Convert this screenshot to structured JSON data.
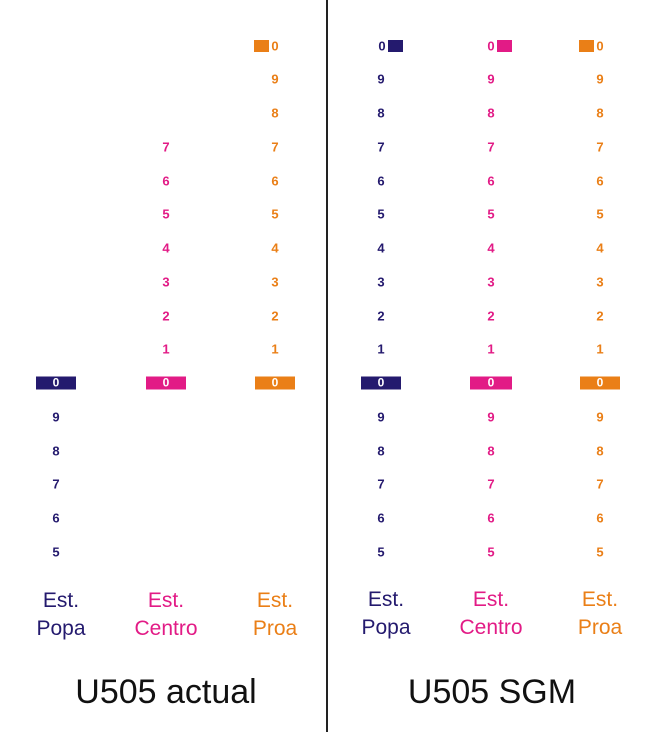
{
  "colors": {
    "popa": "#241a6e",
    "centro": "#e21b86",
    "proa": "#ea7f17",
    "divider": "#222222"
  },
  "panels": [
    {
      "title": "U505 actual",
      "columns": [
        {
          "key": "popa",
          "label_line1": "Est.",
          "label_line2": "Popa",
          "ticks_above": [],
          "zero_label": "0",
          "ticks_below": [
            "9",
            "8",
            "7",
            "6",
            "5"
          ],
          "top_zero_label": null
        },
        {
          "key": "centro",
          "label_line1": "Est.",
          "label_line2": "Centro",
          "ticks_above": [
            "7",
            "6",
            "5",
            "4",
            "3",
            "2",
            "1"
          ],
          "zero_label": "0",
          "ticks_below": [],
          "top_zero_label": null
        },
        {
          "key": "proa",
          "label_line1": "Est.",
          "label_line2": "Proa",
          "ticks_above": [
            "9",
            "8",
            "7",
            "6",
            "5",
            "4",
            "3",
            "2",
            "1"
          ],
          "zero_label": "0",
          "ticks_below": [],
          "top_zero_label": "0"
        }
      ]
    },
    {
      "title": "U505 SGM",
      "columns": [
        {
          "key": "popa",
          "label_line1": "Est.",
          "label_line2": "Popa",
          "ticks_above": [
            "9",
            "8",
            "7",
            "6",
            "5",
            "4",
            "3",
            "2",
            "1"
          ],
          "zero_label": "0",
          "ticks_below": [
            "9",
            "8",
            "7",
            "6",
            "5"
          ],
          "top_zero_label": "0"
        },
        {
          "key": "centro",
          "label_line1": "Est.",
          "label_line2": "Centro",
          "ticks_above": [
            "9",
            "8",
            "7",
            "6",
            "5",
            "4",
            "3",
            "2",
            "1"
          ],
          "zero_label": "0",
          "ticks_below": [
            "9",
            "8",
            "7",
            "6",
            "5"
          ],
          "top_zero_label": "0"
        },
        {
          "key": "proa",
          "label_line1": "Est.",
          "label_line2": "Proa",
          "ticks_above": [
            "9",
            "8",
            "7",
            "6",
            "5",
            "4",
            "3",
            "2",
            "1"
          ],
          "zero_label": "0",
          "ticks_below": [
            "9",
            "8",
            "7",
            "6",
            "5"
          ],
          "top_zero_label": "0"
        }
      ]
    }
  ]
}
